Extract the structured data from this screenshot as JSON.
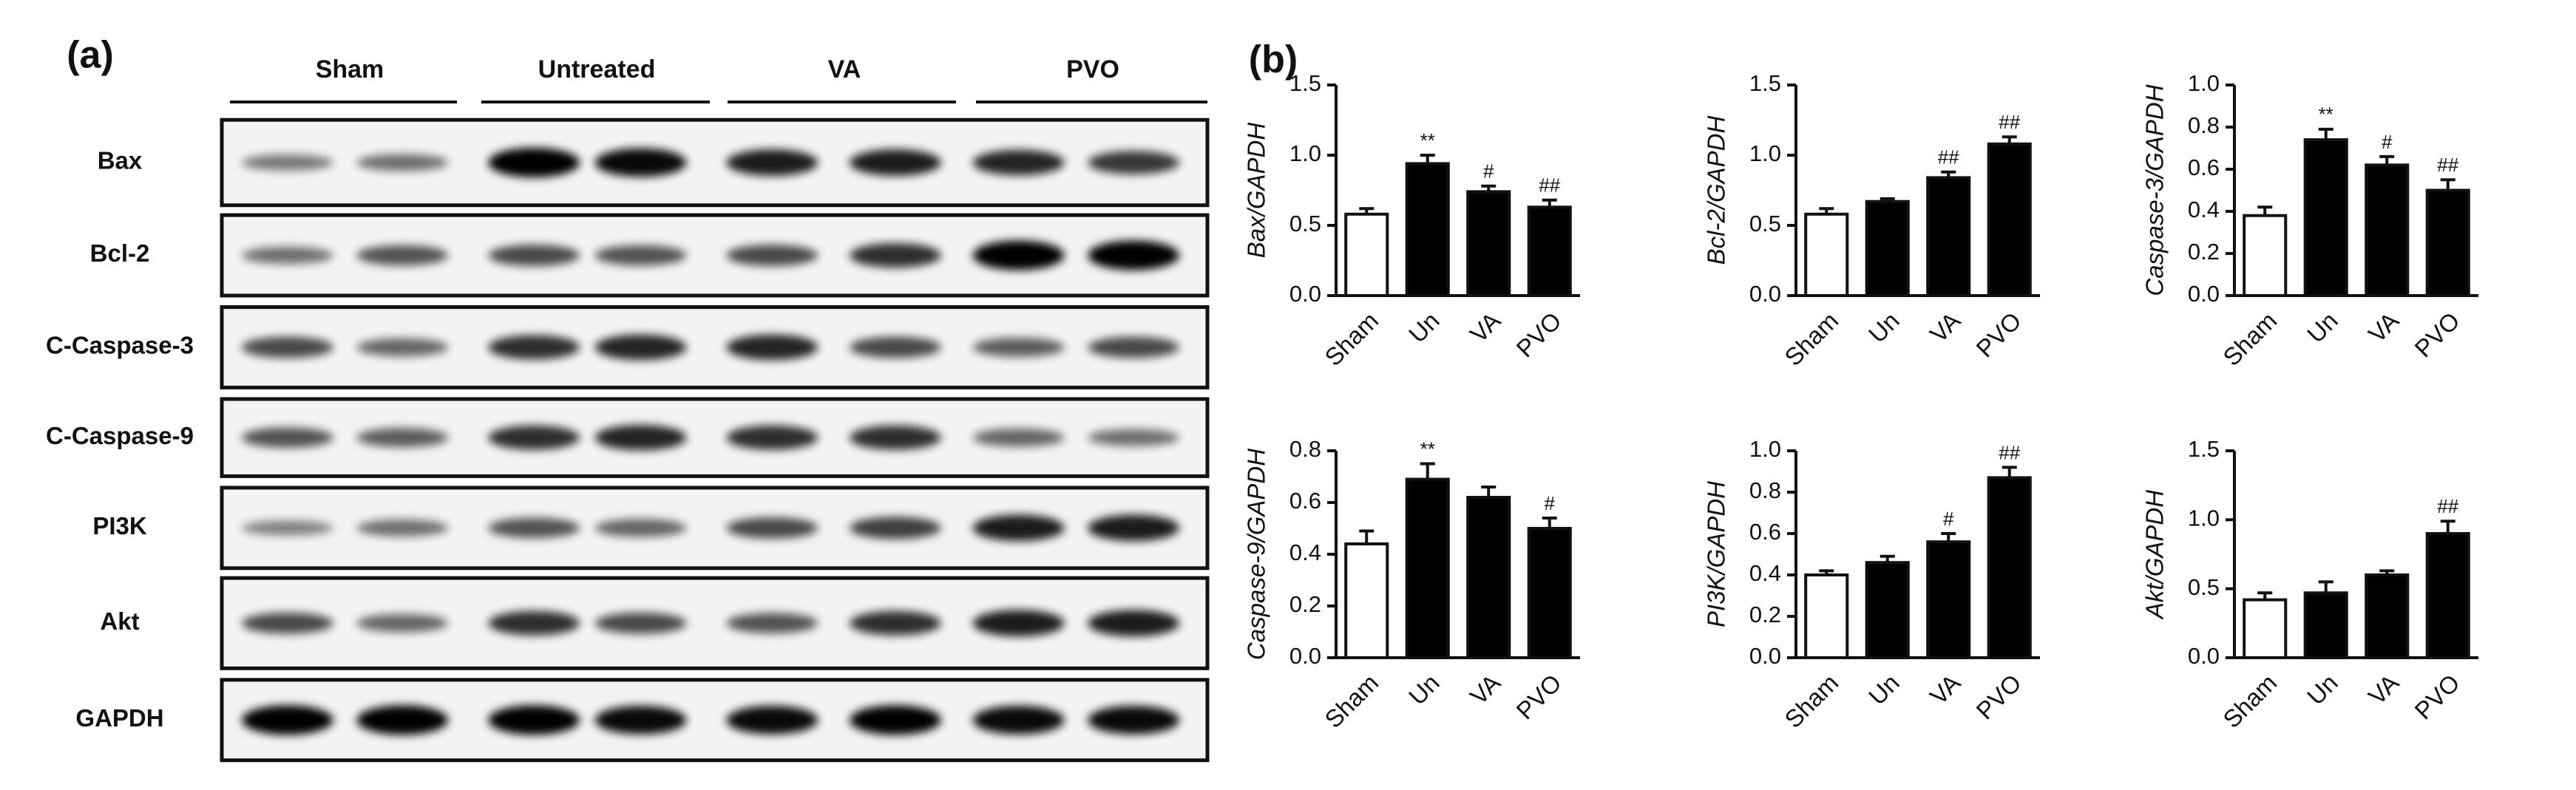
{
  "panel_a": {
    "label": "(a)",
    "groups": [
      "Sham",
      "Untreated",
      "VA",
      "PVO"
    ],
    "rows": [
      "Bax",
      "Bcl-2",
      "C-Caspase-3",
      "C-Caspase-9",
      "PI3K",
      "Akt",
      "GAPDH"
    ]
  },
  "panel_b": {
    "label": "(b)"
  },
  "chart_data": [
    {
      "type": "bar",
      "ylabel": "Bax/GAPDH",
      "categories": [
        "Sham",
        "Un",
        "VA",
        "PVO"
      ],
      "values": [
        0.58,
        0.94,
        0.74,
        0.63
      ],
      "errors": [
        0.04,
        0.06,
        0.04,
        0.05
      ],
      "annotations": [
        null,
        "**",
        "#",
        "##"
      ],
      "colors": [
        "#ffffff",
        "#000000",
        "#000000",
        "#000000"
      ],
      "ylim": [
        0,
        1.5
      ],
      "yticks": [
        {
          "value": 0,
          "label": "0.0"
        },
        0.5,
        {
          "value": 1,
          "label": "1.0"
        },
        1.5
      ]
    },
    {
      "type": "bar",
      "ylabel": "Bcl-2/GAPDH",
      "categories": [
        "Sham",
        "Un",
        "VA",
        "PVO"
      ],
      "values": [
        0.58,
        0.67,
        0.84,
        1.08
      ],
      "errors": [
        0.04,
        0.02,
        0.04,
        0.05
      ],
      "annotations": [
        null,
        null,
        "##",
        "##"
      ],
      "colors": [
        "#ffffff",
        "#000000",
        "#000000",
        "#000000"
      ],
      "ylim": [
        0,
        1.5
      ],
      "yticks": [
        {
          "value": 0,
          "label": "0.0"
        },
        0.5,
        {
          "value": 1,
          "label": "1.0"
        },
        1.5
      ]
    },
    {
      "type": "bar",
      "ylabel": "Caspase-3/GAPDH",
      "categories": [
        "Sham",
        "Un",
        "VA",
        "PVO"
      ],
      "values": [
        0.38,
        0.74,
        0.62,
        0.5
      ],
      "errors": [
        0.04,
        0.05,
        0.04,
        0.05
      ],
      "annotations": [
        null,
        "**",
        "#",
        "##"
      ],
      "colors": [
        "#ffffff",
        "#000000",
        "#000000",
        "#000000"
      ],
      "ylim": [
        0,
        1.0
      ],
      "yticks": [
        {
          "value": 0,
          "label": "0.0"
        },
        0.2,
        0.4,
        0.6,
        0.8,
        {
          "value": 1,
          "label": "1.0"
        }
      ]
    },
    {
      "type": "bar",
      "ylabel": "Caspase-9/GAPDH",
      "categories": [
        "Sham",
        "Un",
        "VA",
        "PVO"
      ],
      "values": [
        0.44,
        0.69,
        0.62,
        0.5
      ],
      "errors": [
        0.05,
        0.06,
        0.04,
        0.04
      ],
      "annotations": [
        null,
        "**",
        null,
        "#"
      ],
      "colors": [
        "#ffffff",
        "#000000",
        "#000000",
        "#000000"
      ],
      "ylim": [
        0,
        0.8
      ],
      "yticks": [
        {
          "value": 0,
          "label": "0.0"
        },
        0.2,
        0.4,
        0.6,
        0.8
      ]
    },
    {
      "type": "bar",
      "ylabel": "PI3K/GAPDH",
      "categories": [
        "Sham",
        "Un",
        "VA",
        "PVO"
      ],
      "values": [
        0.4,
        0.46,
        0.56,
        0.87
      ],
      "errors": [
        0.02,
        0.03,
        0.04,
        0.05
      ],
      "annotations": [
        null,
        null,
        "#",
        "##"
      ],
      "colors": [
        "#ffffff",
        "#000000",
        "#000000",
        "#000000"
      ],
      "ylim": [
        0,
        1.0
      ],
      "yticks": [
        {
          "value": 0,
          "label": "0.0"
        },
        0.2,
        0.4,
        0.6,
        0.8,
        {
          "value": 1,
          "label": "1.0"
        }
      ]
    },
    {
      "type": "bar",
      "ylabel": "Akt/GAPDH",
      "categories": [
        "Sham",
        "Un",
        "VA",
        "PVO"
      ],
      "values": [
        0.42,
        0.47,
        0.6,
        0.9
      ],
      "errors": [
        0.05,
        0.08,
        0.03,
        0.09
      ],
      "annotations": [
        null,
        null,
        null,
        "##"
      ],
      "colors": [
        "#ffffff",
        "#000000",
        "#000000",
        "#000000"
      ],
      "ylim": [
        0,
        1.5
      ],
      "yticks": [
        {
          "value": 0,
          "label": "0.0"
        },
        0.5,
        {
          "value": 1,
          "label": "1.0"
        },
        1.5
      ]
    }
  ]
}
